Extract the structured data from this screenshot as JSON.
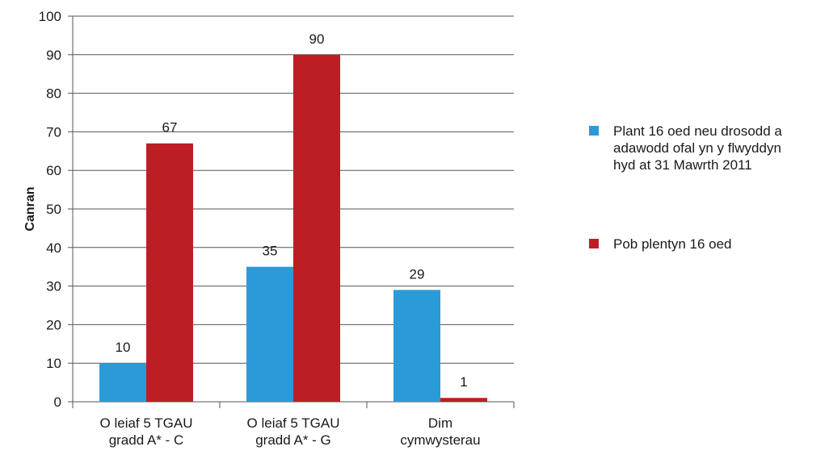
{
  "chart_data": {
    "type": "bar",
    "ylabel": "Canran",
    "ylim": [
      0,
      100
    ],
    "yticks": [
      0,
      10,
      20,
      30,
      40,
      50,
      60,
      70,
      80,
      90,
      100
    ],
    "grid": true,
    "legend_position": "right",
    "categories": [
      [
        "O leiaf 5 TGAU",
        "gradd A* - C"
      ],
      [
        "O leiaf 5 TGAU",
        "gradd A* - G"
      ],
      [
        "Dim",
        "cymwysterau"
      ]
    ],
    "series": [
      {
        "name": [
          "Plant 16 oed neu drosodd a",
          "adawodd ofal yn y flwyddyn",
          "hyd at 31 Mawrth 2011"
        ],
        "color": "#2B9BD7",
        "values": [
          10,
          35,
          29
        ],
        "labels": [
          "10",
          "35",
          "29"
        ]
      },
      {
        "name": [
          "Pob plentyn 16 oed"
        ],
        "color": "#BD1E24",
        "values": [
          67,
          90,
          1
        ],
        "labels": [
          "67",
          "90",
          "1"
        ]
      }
    ]
  }
}
